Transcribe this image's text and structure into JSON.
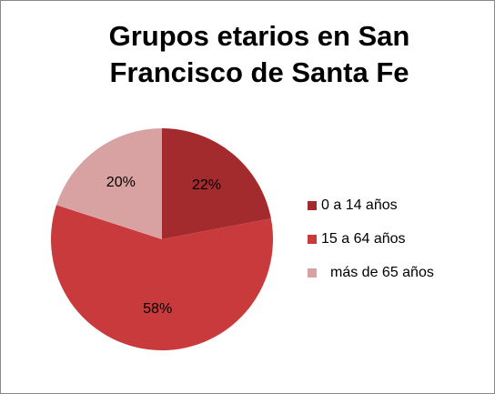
{
  "chart_data": {
    "type": "pie",
    "title": "Grupos etarios en San Francisco de Santa Fe",
    "categories": [
      "0 a 14 años",
      "15 a 64 años",
      "más de 65 años"
    ],
    "values": [
      22,
      58,
      20
    ],
    "value_labels": [
      "22%",
      "58%",
      "20%"
    ],
    "colors": [
      "#a32b2d",
      "#c93a3c",
      "#d9a2a2"
    ],
    "legend": "right"
  }
}
